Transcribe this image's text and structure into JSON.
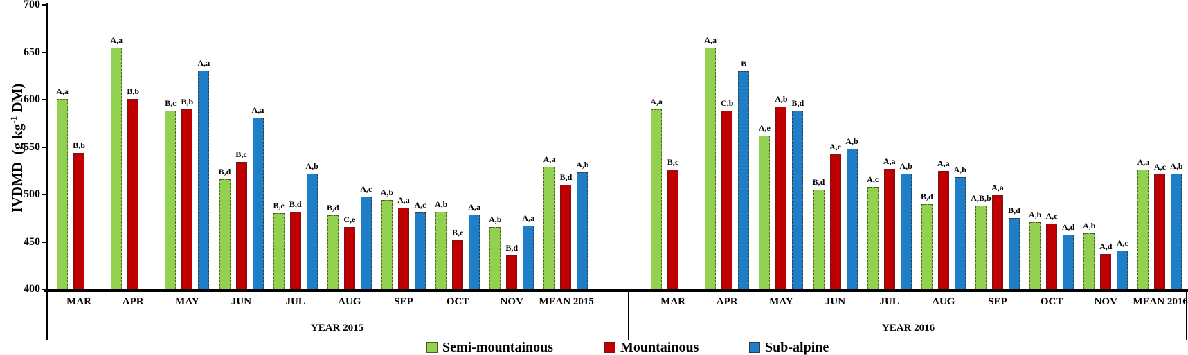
{
  "chart_data": {
    "type": "bar",
    "title": "",
    "ylabel": "IVDMD (g kg-1 DM)",
    "ylabel_parts": {
      "pre": "IVDMD  (g kg",
      "sup": "-1",
      "post": " DM)"
    },
    "ylim": [
      400,
      700
    ],
    "yticks": [
      700,
      650,
      600,
      550,
      500,
      450,
      400
    ],
    "grid": false,
    "legend_position": "bottom",
    "series_meta": [
      {
        "name": "Semi-mountainous",
        "fill": "#92D050",
        "border": "#4E5B1F",
        "border_style": "dashed"
      },
      {
        "name": "Mountainous",
        "fill": "#C00000",
        "border": "#7A1414",
        "border_style": "solid"
      },
      {
        "name": "Sub-alpine",
        "fill": "#1F7EC8",
        "border": "#3A3A3A",
        "border_style": "dashed"
      }
    ],
    "groups": [
      {
        "year_label": "YEAR 2015",
        "categories": [
          "MAR",
          "APR",
          "MAY",
          "JUN",
          "JUL",
          "AUG",
          "SEP",
          "OCT",
          "NOV",
          "MEAN 2015"
        ],
        "series": [
          {
            "name": "Semi-mountainous",
            "values": [
              601,
              655,
              588,
              516,
              480,
              478,
              494,
              482,
              466,
              529
            ],
            "labels": [
              "A,a",
              "A,a",
              "B,c",
              "B,d",
              "B,e",
              "B,d",
              "A,b",
              "A,b",
              "A,b",
              "A,a"
            ]
          },
          {
            "name": "Mountainous",
            "values": [
              544,
              601,
              590,
              534,
              482,
              466,
              486,
              452,
              436,
              510
            ],
            "labels": [
              "B,b",
              "B,b",
              "B,b",
              "B,c",
              "B,d",
              "C,e",
              "A,a",
              "B,c",
              "B,d",
              "B,d"
            ]
          },
          {
            "name": "Sub-alpine",
            "values": [
              null,
              null,
              631,
              581,
              522,
              498,
              481,
              479,
              467,
              523
            ],
            "labels": [
              null,
              null,
              "A,a",
              "A,a",
              "A,b",
              "A,c",
              "A,c",
              "A,a",
              "A,a",
              "A,b"
            ]
          }
        ]
      },
      {
        "year_label": "YEAR 2016",
        "categories": [
          "MAR",
          "APR",
          "MAY",
          "JUN",
          "JUL",
          "AUG",
          "SEP",
          "OCT",
          "NOV",
          "MEAN 2016"
        ],
        "series": [
          {
            "name": "Semi-mountainous",
            "values": [
              590,
              655,
              562,
              505,
              508,
              490,
              488,
              471,
              459,
              526
            ],
            "labels": [
              "A,a",
              "A,a",
              "A,e",
              "B,d",
              "A,c",
              "B,d",
              "A,B,b",
              "A,b",
              "A,b",
              "A,a"
            ]
          },
          {
            "name": "Mountainous",
            "values": [
              526,
              588,
              593,
              542,
              527,
              525,
              499,
              469,
              437,
              521
            ],
            "labels": [
              "B,c",
              "C,b",
              "A,b",
              "A,c",
              "A,a",
              "A,a",
              "A,a",
              "A,c",
              "A,d",
              "A,c"
            ]
          },
          {
            "name": "Sub-alpine",
            "values": [
              null,
              630,
              588,
              548,
              522,
              518,
              475,
              458,
              441,
              522
            ],
            "labels": [
              null,
              "B",
              "B,d",
              "A,b",
              "A,b",
              "A,b",
              "B,d",
              "A,d",
              "A,c",
              "A,b"
            ]
          }
        ]
      }
    ]
  },
  "legend": {
    "items": [
      "Semi-mountainous",
      "Mountainous",
      "Sub-alpine"
    ]
  }
}
